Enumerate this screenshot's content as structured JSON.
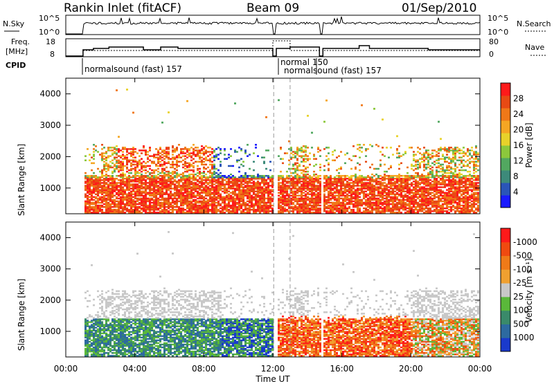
{
  "header": {
    "station": "Rankin Inlet (fitACF)",
    "beam": "Beam 09",
    "date": "01/Sep/2010"
  },
  "panels": {
    "noise": {
      "left_label": "N.Sky",
      "right_label": "N.Search",
      "left_ticks": [
        "10^5",
        "10^0"
      ],
      "right_ticks": [
        "10^5",
        "10^0"
      ]
    },
    "freq": {
      "left_label_1": "Freq.",
      "left_label_2": "[MHz]",
      "right_label": "Nave",
      "left_ticks": [
        "18",
        "8"
      ],
      "right_ticks": [
        "80",
        "0"
      ]
    },
    "cpid": {
      "label": "CPID",
      "modes": [
        "normalsound (fast) 157",
        "normal 150",
        "normalsound (fast) 157"
      ]
    }
  },
  "chart_data": [
    {
      "type": "heatmap",
      "name": "power",
      "ylabel": "Slant Range [km]",
      "yticks": [
        1000,
        2000,
        3000,
        4000
      ],
      "ylim": [
        180,
        4500
      ],
      "xlim": [
        0,
        24
      ],
      "colorbar": {
        "label": "Power [dB]",
        "ticks": [
          "4",
          "8",
          "12",
          "16",
          "20",
          "24",
          "28"
        ],
        "colors": [
          "#1a1aff",
          "#2a55b8",
          "#3d8a7a",
          "#52a860",
          "#8cc83c",
          "#e8d22a",
          "#f5a623",
          "#f07818",
          "#e84a14",
          "#ff1a1a"
        ]
      }
    },
    {
      "type": "heatmap",
      "name": "velocity",
      "ylabel": "Slant Range [km]",
      "yticks": [
        1000,
        2000,
        3000,
        4000
      ],
      "ylim": [
        180,
        4500
      ],
      "xlim": [
        0,
        24
      ],
      "colorbar": {
        "label": "Velocity [m s⁻¹]",
        "ticks": [
          "1000",
          "500",
          "100",
          "25",
          "-25",
          "-100",
          "-500",
          "-1000"
        ],
        "colors": [
          "#1a3acc",
          "#2d6aa0",
          "#3a8a6a",
          "#5ab83a",
          "#c8c8c8",
          "#f0a030",
          "#f07a18",
          "#f04a10",
          "#ff1a1a"
        ]
      }
    }
  ],
  "xaxis": {
    "label": "Time UT",
    "ticks": [
      "00:00",
      "04:00",
      "08:00",
      "12:00",
      "16:00",
      "20:00",
      "00:00"
    ]
  }
}
